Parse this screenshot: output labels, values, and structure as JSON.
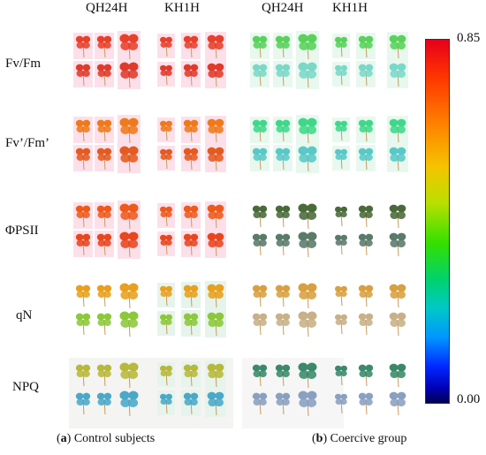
{
  "column_headers": [
    "QH24H",
    "KH1H",
    "QH24H",
    "KH1H"
  ],
  "row_labels": [
    "Fv/Fm",
    "Fv’/Fm’",
    "ΦPSII",
    "qN",
    "NPQ"
  ],
  "captions": {
    "a_letter": "a",
    "a_text": " Control subjects",
    "b_letter": "b",
    "b_text": " Coercive group"
  },
  "colorbar": {
    "max_label": "0.85",
    "min_label": "0.00",
    "colors": [
      "#e6001a",
      "#ff7a00",
      "#f5c400",
      "#33e000",
      "#00c8c8",
      "#0028ff",
      "#000050"
    ]
  },
  "panel_colors": {
    "control": {
      "Fv/Fm": [
        "#e8402a",
        "#e03a2a"
      ],
      "Fv’/Fm’": [
        "#ef7a1a",
        "#e55a1e"
      ],
      "ΦPSII": [
        "#ee5a1c",
        "#e8461e"
      ],
      "qN": [
        "#e8a01e",
        "#8cc83a"
      ],
      "NPQ": [
        "#b8b83a",
        "#4aa8c8"
      ]
    },
    "coercive": {
      "Fv/Fm": [
        "#58d25a",
        "#7ad8c8"
      ],
      "Fv’/Fm’": [
        "#3ed88a",
        "#58c8c8"
      ],
      "ΦPSII": [
        "#4a6a3a",
        "#5a7a6a"
      ],
      "qN": [
        "#d8a040",
        "#c8b088"
      ],
      "NPQ": [
        "#3a8a6a",
        "#8aa0c0"
      ]
    }
  }
}
